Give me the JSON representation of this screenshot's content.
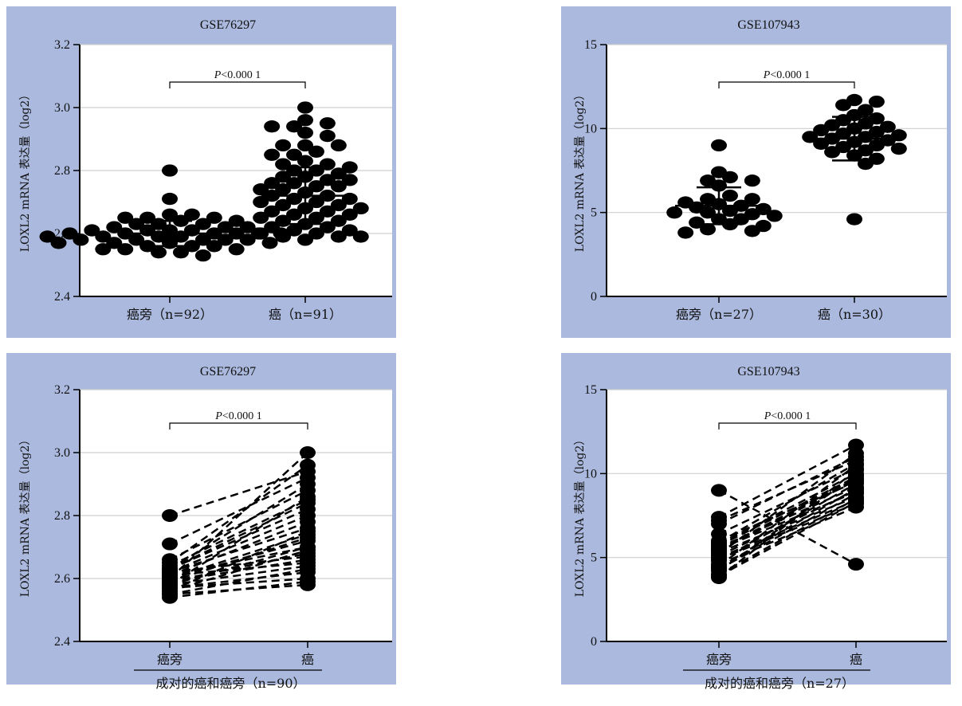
{
  "chart_data": [
    {
      "type": "scatter",
      "title": "GSE76297",
      "ylabel": "LOXL2 mRNA 表达量（log2）",
      "ylim": [
        2.4,
        3.2
      ],
      "yticks": [
        "2.4",
        "2.6",
        "2.8",
        "3.0",
        "3.2"
      ],
      "categories": [
        "癌旁（n=92）",
        "癌（n=91）"
      ],
      "significance": "P<0.000 1",
      "grid": true,
      "paired": false,
      "series": [
        {
          "values": [
            2.8,
            2.71,
            2.66,
            2.66,
            2.65,
            2.65,
            2.65,
            2.64,
            2.64,
            2.63,
            2.63,
            2.63,
            2.62,
            2.62,
            2.62,
            2.61,
            2.61,
            2.61,
            2.61,
            2.6,
            2.6,
            2.6,
            2.6,
            2.6,
            2.6,
            2.59,
            2.59,
            2.59,
            2.59,
            2.59,
            2.58,
            2.58,
            2.58,
            2.58,
            2.58,
            2.57,
            2.57,
            2.57,
            2.57,
            2.56,
            2.56,
            2.56,
            2.55,
            2.55,
            2.55,
            2.54,
            2.54,
            2.53
          ],
          "mean": 2.6,
          "sd": 0.04
        },
        {
          "values": [
            3.0,
            2.96,
            2.95,
            2.94,
            2.94,
            2.92,
            2.91,
            2.88,
            2.88,
            2.88,
            2.86,
            2.85,
            2.85,
            2.83,
            2.82,
            2.82,
            2.81,
            2.8,
            2.8,
            2.79,
            2.78,
            2.78,
            2.77,
            2.77,
            2.76,
            2.76,
            2.75,
            2.75,
            2.74,
            2.74,
            2.73,
            2.72,
            2.72,
            2.71,
            2.71,
            2.7,
            2.7,
            2.69,
            2.69,
            2.68,
            2.68,
            2.67,
            2.67,
            2.66,
            2.66,
            2.65,
            2.65,
            2.64,
            2.64,
            2.63,
            2.62,
            2.62,
            2.61,
            2.61,
            2.6,
            2.6,
            2.59,
            2.59,
            2.59,
            2.58
          ],
          "mean": 2.72,
          "sd": 0.09
        }
      ]
    },
    {
      "type": "scatter",
      "title": "GSE107943",
      "ylabel": "LOXL2 mRNA 表达量（log2）",
      "ylim": [
        0,
        15
      ],
      "yticks": [
        "0",
        "5",
        "10",
        "15"
      ],
      "categories": [
        "癌旁（n=27）",
        "癌（n=30）"
      ],
      "significance": "P<0.000 1",
      "grid": true,
      "paired": false,
      "series": [
        {
          "values": [
            9.0,
            7.4,
            7.1,
            6.9,
            6.9,
            6.6,
            6.0,
            5.8,
            5.8,
            5.6,
            5.5,
            5.4,
            5.3,
            5.2,
            5.1,
            5.0,
            5.0,
            4.9,
            4.8,
            4.6,
            4.6,
            4.4,
            4.3,
            4.2,
            4.0,
            3.9,
            3.8
          ],
          "mean": 5.4,
          "sd": 1.1
        },
        {
          "values": [
            11.7,
            11.6,
            11.4,
            11.1,
            10.8,
            10.6,
            10.5,
            10.3,
            10.2,
            10.1,
            10.0,
            9.9,
            9.8,
            9.7,
            9.6,
            9.5,
            9.5,
            9.4,
            9.3,
            9.2,
            9.1,
            9.0,
            8.9,
            8.8,
            8.7,
            8.6,
            8.4,
            8.2,
            7.9,
            4.6
          ],
          "mean": 9.4,
          "sd": 1.3
        }
      ]
    },
    {
      "type": "scatter",
      "title": "GSE76297",
      "ylabel": "LOXL2 mRNA 表达量（log2）",
      "ylim": [
        2.4,
        3.2
      ],
      "yticks": [
        "2.4",
        "2.6",
        "2.8",
        "3.0",
        "3.2"
      ],
      "categories": [
        "癌旁",
        "癌"
      ],
      "group_label": "成对的癌和癌旁（n=90）",
      "significance": "P<0.000 1",
      "grid": true,
      "paired": true,
      "pairs": [
        [
          2.8,
          2.94
        ],
        [
          2.71,
          2.92
        ],
        [
          2.66,
          2.88
        ],
        [
          2.65,
          2.96
        ],
        [
          2.64,
          2.85
        ],
        [
          2.63,
          2.82
        ],
        [
          2.63,
          2.9
        ],
        [
          2.62,
          2.8
        ],
        [
          2.62,
          2.76
        ],
        [
          2.61,
          2.78
        ],
        [
          2.61,
          2.7
        ],
        [
          2.6,
          2.74
        ],
        [
          2.6,
          2.72
        ],
        [
          2.59,
          2.68
        ],
        [
          2.59,
          2.66
        ],
        [
          2.58,
          2.64
        ],
        [
          2.58,
          2.86
        ],
        [
          2.57,
          2.62
        ],
        [
          2.57,
          2.6
        ],
        [
          2.56,
          2.69
        ],
        [
          2.56,
          2.75
        ],
        [
          2.55,
          2.58
        ],
        [
          2.55,
          2.63
        ],
        [
          2.54,
          2.59
        ],
        [
          2.6,
          3.0
        ],
        [
          2.62,
          2.67
        ],
        [
          2.58,
          2.7
        ],
        [
          2.63,
          2.84
        ],
        [
          2.59,
          2.73
        ],
        [
          2.61,
          2.65
        ]
      ]
    },
    {
      "type": "scatter",
      "title": "GSE107943",
      "ylabel": "LOXL2 mRNA 表达量（log2）",
      "ylim": [
        0,
        15
      ],
      "yticks": [
        "0",
        "5",
        "10",
        "15"
      ],
      "categories": [
        "癌旁",
        "癌"
      ],
      "group_label": "成对的癌和癌旁（n=27）",
      "significance": "P<0.000 1",
      "grid": true,
      "paired": true,
      "pairs": [
        [
          9.0,
          4.6
        ],
        [
          7.4,
          11.7
        ],
        [
          7.2,
          10.8
        ],
        [
          7.0,
          11.0
        ],
        [
          6.4,
          10.3
        ],
        [
          6.0,
          9.5
        ],
        [
          5.8,
          10.0
        ],
        [
          5.7,
          9.8
        ],
        [
          5.6,
          9.2
        ],
        [
          5.5,
          8.9
        ],
        [
          5.4,
          9.6
        ],
        [
          5.3,
          8.6
        ],
        [
          5.2,
          11.2
        ],
        [
          5.1,
          9.0
        ],
        [
          5.0,
          8.4
        ],
        [
          4.9,
          8.2
        ],
        [
          4.8,
          9.4
        ],
        [
          4.6,
          8.0
        ],
        [
          4.5,
          10.5
        ],
        [
          4.4,
          9.1
        ],
        [
          4.3,
          8.8
        ],
        [
          4.2,
          9.9
        ],
        [
          4.0,
          8.5
        ],
        [
          3.9,
          8.3
        ],
        [
          3.8,
          10.2
        ],
        [
          5.5,
          9.7
        ],
        [
          5.9,
          10.6
        ]
      ]
    }
  ]
}
